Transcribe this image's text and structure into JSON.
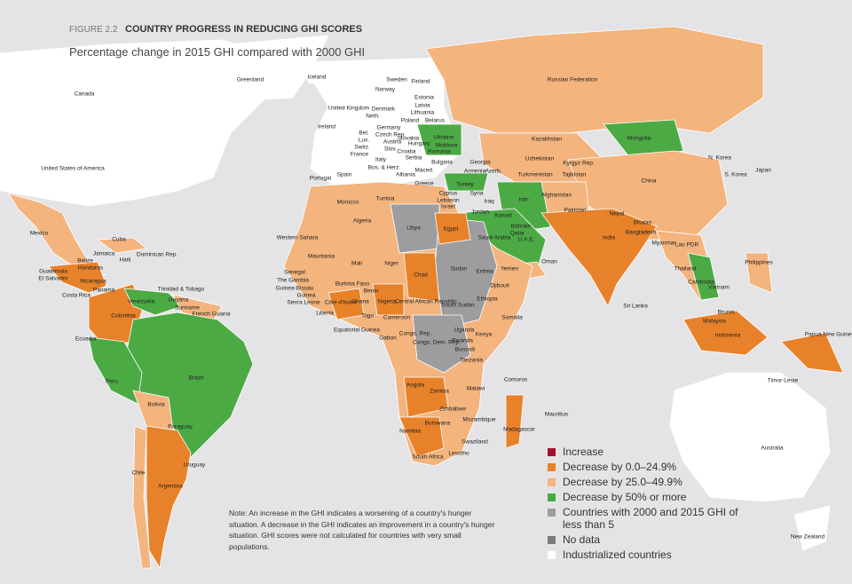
{
  "header": {
    "figure": "FIGURE 2.2",
    "title": "COUNTRY PROGRESS IN REDUCING GHI SCORES",
    "subtitle": "Percentage change in 2015 GHI compared with 2000 GHI"
  },
  "legend": [
    {
      "label": "Increase",
      "color": "#a50f2d"
    },
    {
      "label": "Decrease by 0.0–24.9%",
      "color": "#e8822a"
    },
    {
      "label": "Decrease by  25.0–49.9%",
      "color": "#f3b47e"
    },
    {
      "label": "Decrease by 50% or more",
      "color": "#4caa45"
    },
    {
      "label": "Countries with 2000 and 2015 GHI of less than 5",
      "color": "#9d9d9f"
    },
    {
      "label": "No data",
      "color": "#7c7c7e"
    },
    {
      "label": "Industrialized countries",
      "color": "#ffffff"
    }
  ],
  "note": "Note: An increase in the GHI indicates a worsening of a country's hunger situation. A decrease in the GHI indicates an improvement in a country's hunger situation. GHI scores were not calculated for countries with very small populations.",
  "countries": [
    "Canada",
    "Greenland",
    "Iceland",
    "Sweden",
    "Finland",
    "Norway",
    "United Kingdom",
    "Denmark",
    "Estonia",
    "Latvia",
    "Lithuania",
    "Neth.",
    "Ireland",
    "Poland",
    "Belarus",
    "Germany",
    "Bel.",
    "Czech Rep.",
    "Ukraine",
    "Lux.",
    "Slovakia",
    "Austria",
    "Hungary",
    "Moldova",
    "Switz.",
    "Slov.",
    "Croatia",
    "Romania",
    "France",
    "Serbia",
    "Italy",
    "Bulgaria",
    "Bos. & Herz.",
    "Maced.",
    "Albania",
    "Georgia",
    "Armenia",
    "Azerb.",
    "Kazakhstan",
    "Russian Federation",
    "Mongolia",
    "Kyrgyz Rep.",
    "Uzbekistan",
    "Turkmenistan",
    "Tajikistan",
    "N. Korea",
    "Japan",
    "S. Korea",
    "China",
    "Portugal",
    "Spain",
    "Greece",
    "Turkey",
    "Cyprus",
    "Syria",
    "Lebanon",
    "Israel",
    "Iraq",
    "Iran",
    "Afghanistan",
    "Jordan",
    "Kuwait",
    "Pakistan",
    "Nepal",
    "Bhutan",
    "Bahrain",
    "Qatar",
    "U.A.E.",
    "Egypt",
    "Libya",
    "Saudi Arabia",
    "India",
    "Bangladesh",
    "Myanmar",
    "Lao PDR",
    "Morocco",
    "Tunisia",
    "Algeria",
    "Western Sahara",
    "Mauritania",
    "Mali",
    "Niger",
    "Chad",
    "Sudan",
    "Eritrea",
    "Yemen",
    "Oman",
    "Senegal",
    "The Gambia",
    "Guinea-Bissau",
    "Guinea",
    "Burkina Faso",
    "Benin",
    "Ghana",
    "Sierra Leone",
    "Côte d'Ivoire",
    "Nigeria",
    "Liberia",
    "Togo",
    "Cameroon",
    "Central African Republic",
    "South Sudan",
    "Djibouti",
    "Somalia",
    "Ethiopia",
    "Thailand",
    "Cambodia",
    "Vietnam",
    "Philippines",
    "Equatorial Guinea",
    "Gabon",
    "Congo, Rep.",
    "Congo, Dem. Rep.",
    "Uganda",
    "Kenya",
    "Rwanda",
    "Burundi",
    "Tanzania",
    "Malaysia",
    "Brunei",
    "Indonesia",
    "Sri Lanka",
    "Papua New Guinea",
    "Angola",
    "Zambia",
    "Malawi",
    "Comoros",
    "Zimbabwe",
    "Mozambique",
    "Mauritius",
    "Namibia",
    "Botswana",
    "Madagascar",
    "Swaziland",
    "Lesotho",
    "South Africa",
    "Timor-Leste",
    "Australia",
    "New Zealand",
    "Mexico",
    "Cuba",
    "Jamaica",
    "Haiti",
    "Dominican Rep.",
    "Belize",
    "Guatemala",
    "Honduras",
    "El Salvador",
    "Nicaragua",
    "Costa Rica",
    "Panama",
    "Trinidad & Tobago",
    "Guyana",
    "Venezuela",
    "Suriname",
    "French Guiana",
    "Colombia",
    "Ecuador",
    "Peru",
    "Brazil",
    "Bolivia",
    "Paraguay",
    "Uruguay",
    "Chile",
    "Argentina",
    "United States of America"
  ]
}
